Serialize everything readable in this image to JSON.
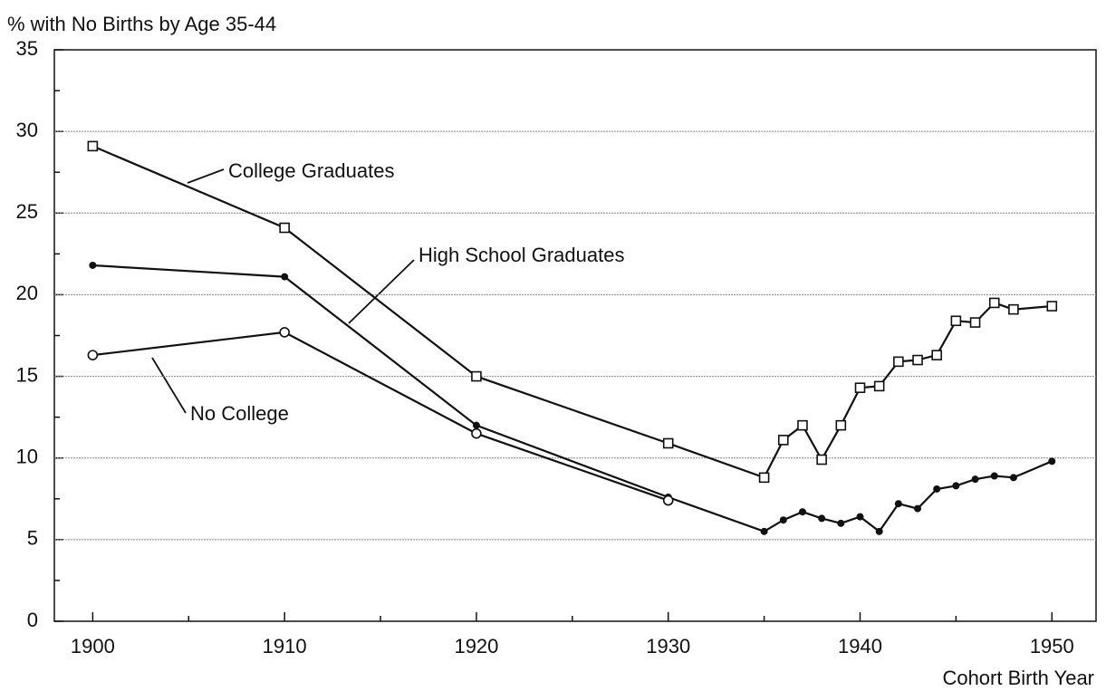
{
  "chart_data": {
    "type": "line",
    "y_axis_label": "% with No Births by Age 35-44",
    "x_axis_label": "Cohort Birth Year",
    "xlim": [
      1898,
      1952.3
    ],
    "ylim": [
      0,
      35
    ],
    "xticks": [
      1900,
      1910,
      1920,
      1930,
      1940,
      1950
    ],
    "yticks": [
      0,
      5,
      10,
      15,
      20,
      25,
      30,
      35
    ],
    "x_minor_ticks": [
      1905,
      1915,
      1925,
      1935,
      1945
    ],
    "y_minor_ticks": [
      2.5,
      7.5,
      12.5,
      17.5,
      22.5,
      27.5,
      32.5
    ],
    "grid": true,
    "series": [
      {
        "name": "College Graduates",
        "color": "#111111",
        "marker": "square",
        "x": [
          1900,
          1910,
          1920,
          1930,
          1935,
          1936,
          1937,
          1938,
          1939,
          1940,
          1941,
          1942,
          1943,
          1944,
          1945,
          1946,
          1947,
          1948,
          1950
        ],
        "values": [
          29.1,
          24.1,
          15.0,
          10.9,
          8.8,
          11.1,
          12.0,
          9.9,
          12.0,
          14.3,
          14.4,
          15.9,
          16.0,
          16.3,
          18.4,
          18.3,
          19.5,
          19.1,
          19.3
        ]
      },
      {
        "name": "High School Graduates",
        "color": "#111111",
        "marker": "dot",
        "x": [
          1900,
          1910,
          1920,
          1930,
          1935,
          1936,
          1937,
          1938,
          1939,
          1940,
          1941,
          1942,
          1943,
          1944,
          1945,
          1946,
          1947,
          1948,
          1950
        ],
        "values": [
          21.8,
          21.1,
          12.0,
          7.6,
          5.5,
          6.2,
          6.7,
          6.3,
          6.0,
          6.4,
          5.5,
          7.2,
          6.9,
          8.1,
          8.3,
          8.7,
          8.9,
          8.8,
          9.8
        ]
      },
      {
        "name": "No College",
        "color": "#111111",
        "marker": "circle",
        "x": [
          1900,
          1910,
          1920,
          1930
        ],
        "values": [
          16.3,
          17.7,
          11.5,
          7.4
        ]
      }
    ]
  }
}
